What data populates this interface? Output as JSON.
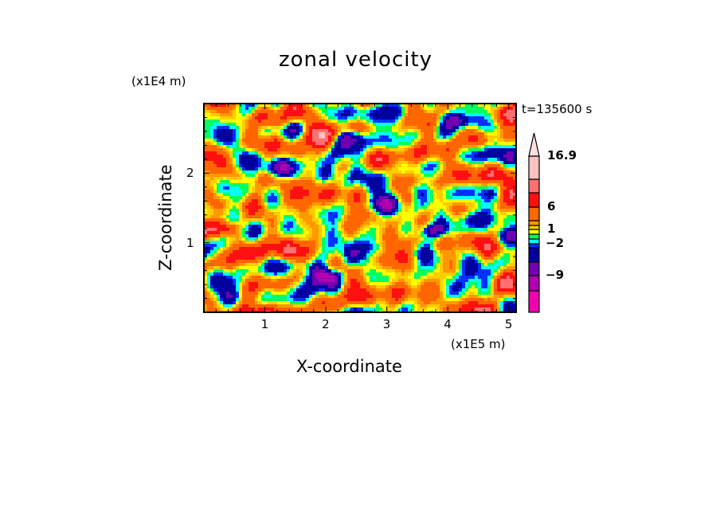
{
  "chart_data": {
    "type": "heatmap",
    "subtype": "filled contour",
    "title": "zonal velocity",
    "xlabel": "X-coordinate",
    "ylabel": "Z-coordinate",
    "x_unit": "(x1E5 m)",
    "y_unit": "(x1E4 m)",
    "time_label": "t=135600 s",
    "xlim": [
      0,
      5.12
    ],
    "ylim": [
      0,
      3.0
    ],
    "x_ticks": [
      "1",
      "2",
      "3",
      "4",
      "5"
    ],
    "x_tick_values": [
      1,
      2,
      3,
      4,
      5
    ],
    "y_ticks": [
      "1",
      "2"
    ],
    "y_tick_values": [
      1,
      2
    ],
    "colorbar": {
      "levels": [
        -15,
        -12,
        -9,
        -6,
        -3,
        -2,
        -1,
        0,
        1,
        2,
        3,
        6,
        9,
        12,
        16.9
      ],
      "colors": [
        "#f000b0",
        "#b000b0",
        "#7000b0",
        "#0000a0",
        "#0030ff",
        "#00ffff",
        "#00ff60",
        "#ffff00",
        "#ffcc00",
        "#ff9900",
        "#ff6600",
        "#ff1010",
        "#ff7070",
        "#ffc0c0"
      ],
      "over_color": "#ffe0e0",
      "labels": [
        "16.9",
        "6",
        "1",
        "−2",
        "−9"
      ],
      "label_values": [
        16.9,
        6,
        1,
        -2,
        -9
      ]
    },
    "field_note_values_range": [
      -15,
      16.9
    ]
  }
}
